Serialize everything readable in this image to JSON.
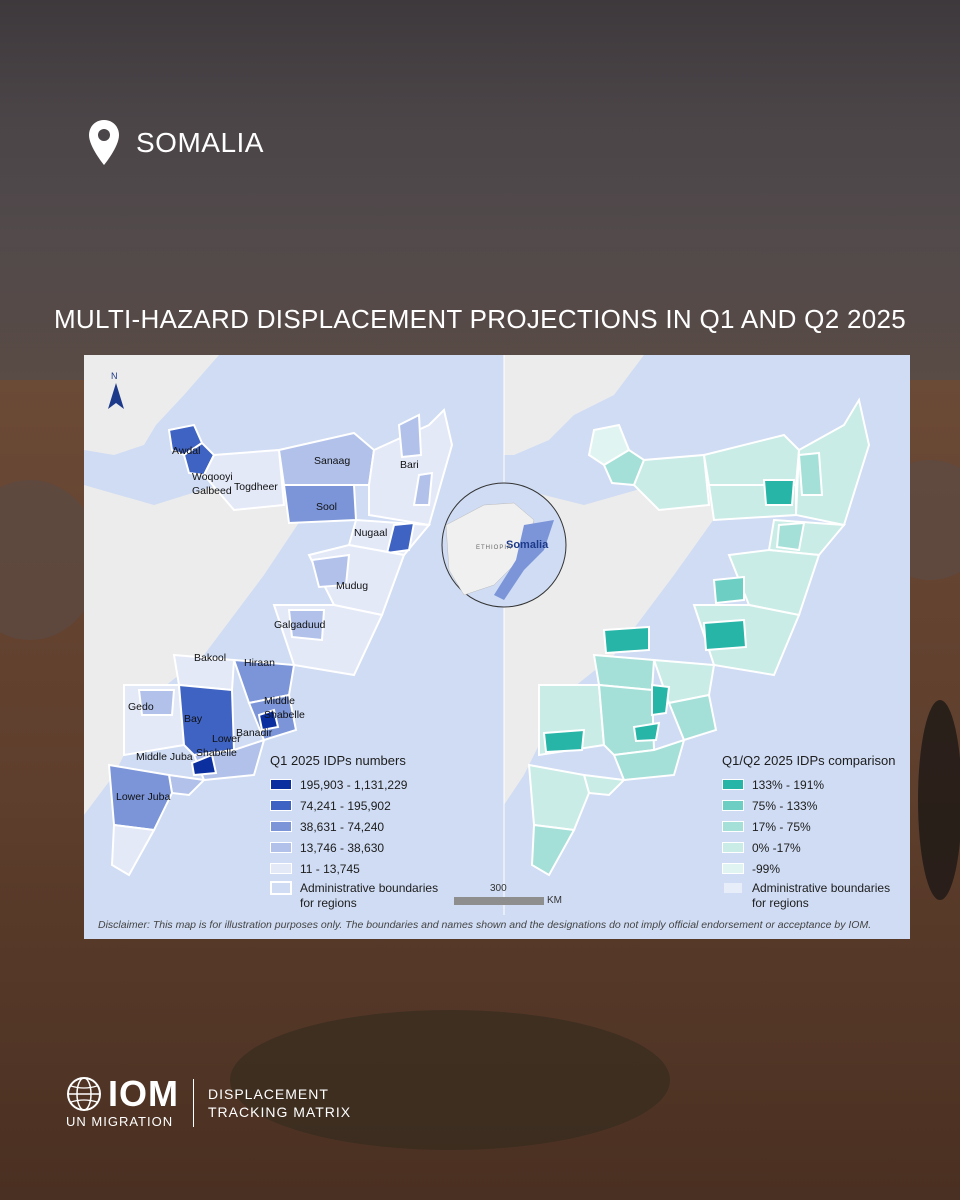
{
  "header": {
    "icon": "location-pin-icon",
    "country": "SOMALIA"
  },
  "title": "MULTI-HAZARD DISPLACEMENT PROJECTIONS IN Q1 AND Q2 2025",
  "map_left": {
    "north_label": "N",
    "region_labels": [
      "Awdal",
      "Woqooyi",
      "Galbeed",
      "Togdheer",
      "Sanaag",
      "Bari",
      "Sool",
      "Nugaal",
      "Mudug",
      "Galgaduud",
      "Bakool",
      "Hiraan",
      "Gedo",
      "Bay",
      "Middle",
      "Shabelle",
      "Lower",
      "Banadir",
      "Shabelle",
      "Middle Juba",
      "Lower Juba"
    ],
    "legend_title": "Q1 2025 IDPs numbers",
    "legend": [
      {
        "label": "195,903 - 1,131,229",
        "color": "#0b2f9e"
      },
      {
        "label": "74,241 - 195,902",
        "color": "#3f63c3"
      },
      {
        "label": "38,631 - 74,240",
        "color": "#7b95d8"
      },
      {
        "label": "13,746 - 38,630",
        "color": "#b1c1ea"
      },
      {
        "label": "11 - 13,745",
        "color": "#e4e9f8"
      }
    ],
    "boundary_label_1": "Administrative boundaries",
    "boundary_label_2": "for regions"
  },
  "inset": {
    "country_label": "Somalia",
    "neighbor_label": "ETHIOPIA"
  },
  "map_right": {
    "legend_title": "Q1/Q2 2025 IDPs comparison",
    "legend": [
      {
        "label": "133% - 191%",
        "color": "#27b5a8"
      },
      {
        "label": "75% - 133%",
        "color": "#6dcfc4"
      },
      {
        "label": "17% - 75%",
        "color": "#a4e0d8"
      },
      {
        "label": "0% -17%",
        "color": "#c9ece6"
      },
      {
        "label": "-99%",
        "color": "#e0f5f1"
      }
    ],
    "boundary_label_1": "Administrative boundaries",
    "boundary_label_2": "for regions"
  },
  "scale": {
    "value": "300",
    "unit": "KM"
  },
  "disclaimer": "Disclaimer: This map is for illustration purposes only. The boundaries and names shown and the designations do not imply official endorsement or acceptance by IOM.",
  "footer": {
    "org_short": "IOM",
    "org_sub": "UN MIGRATION",
    "dtm_line1": "DISPLACEMENT",
    "dtm_line2": "TRACKING MATRIX"
  }
}
